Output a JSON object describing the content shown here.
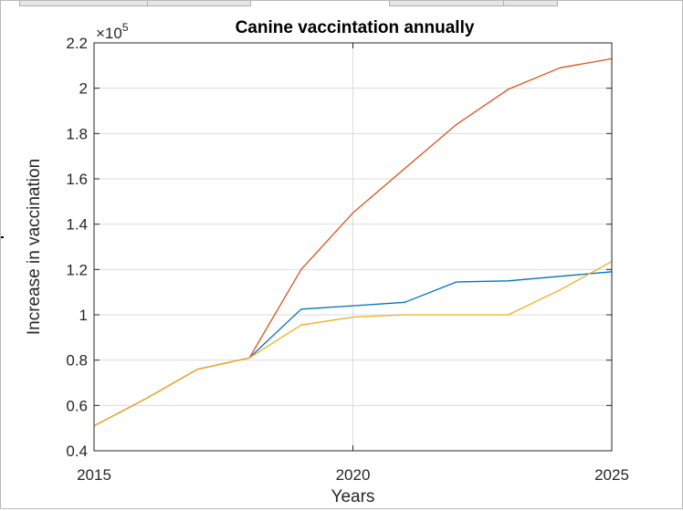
{
  "chart_data": {
    "type": "line",
    "title": "Canine vaccintation annually",
    "xlabel": "Years",
    "ylabel": "Increase in vaccination",
    "y_multiplier_base": "×10",
    "y_multiplier_exponent": "5",
    "xlim": [
      2015,
      2025
    ],
    "ylim": [
      0.4,
      2.2
    ],
    "x_ticks": [
      2015,
      2020,
      2025
    ],
    "y_ticks": [
      0.4,
      0.6,
      0.8,
      1,
      1.2,
      1.4,
      1.6,
      1.8,
      2,
      2.2
    ],
    "x_tick_labels": [
      "2015",
      "2020",
      "2025"
    ],
    "y_tick_labels": [
      "0.4",
      "0.6",
      "0.8",
      "1",
      "1.2",
      "1.4",
      "1.6",
      "1.8",
      "2",
      "2.2"
    ],
    "grid": true,
    "x": [
      2015,
      2016,
      2017,
      2018,
      2019,
      2020,
      2021,
      2022,
      2023,
      2024,
      2025
    ],
    "series": [
      {
        "color": "#0072bd",
        "values": [
          0.51,
          0.63,
          0.76,
          0.81,
          1.025,
          1.04,
          1.055,
          1.145,
          1.15,
          1.17,
          1.19
        ]
      },
      {
        "color": "#d95319",
        "values": [
          0.51,
          0.63,
          0.76,
          0.81,
          1.2,
          1.45,
          1.645,
          1.84,
          1.995,
          2.09,
          2.13
        ]
      },
      {
        "color": "#edb120",
        "values": [
          0.51,
          0.63,
          0.76,
          0.81,
          0.955,
          0.99,
          1.0,
          1.0,
          1.0,
          1.11,
          1.235
        ]
      }
    ]
  }
}
